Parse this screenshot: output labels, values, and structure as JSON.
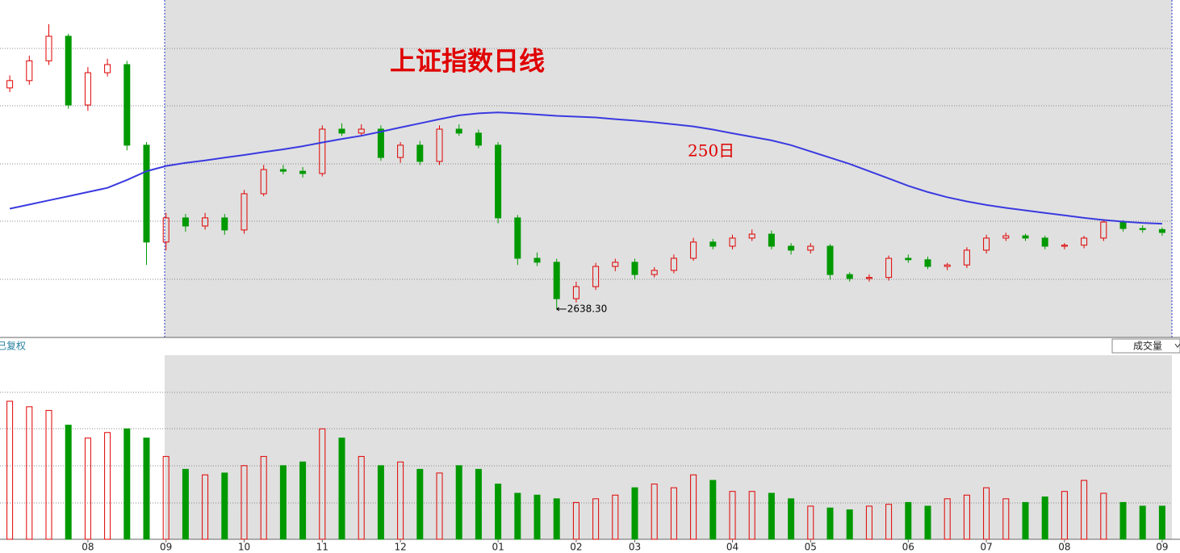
{
  "chart_data": {
    "type": "candlestick",
    "title": "上证指数日线",
    "categories": [
      null,
      null,
      null,
      null,
      "08",
      null,
      null,
      null,
      "09",
      null,
      null,
      null,
      "10",
      null,
      null,
      null,
      "11",
      null,
      null,
      null,
      "12",
      null,
      null,
      null,
      null,
      "01",
      null,
      null,
      null,
      "02",
      null,
      null,
      "03",
      null,
      null,
      null,
      null,
      "04",
      null,
      null,
      null,
      "05",
      null,
      null,
      null,
      null,
      "06",
      null,
      null,
      null,
      "07",
      null,
      null,
      null,
      "08",
      null,
      null,
      null,
      null,
      "09"
    ],
    "open": [
      3700,
      3735,
      3830,
      3948,
      3618,
      3773,
      3812,
      3425,
      2960,
      3076,
      3037,
      3076,
      3018,
      3192,
      3308,
      3300,
      3289,
      3502,
      3483,
      3502,
      3366,
      3425,
      3347,
      3502,
      3483,
      3425,
      3076,
      2882,
      2863,
      2688,
      2746,
      2843,
      2863,
      2804,
      2824,
      2882,
      2960,
      2940,
      2979,
      2998,
      2940,
      2921,
      2940,
      2804,
      2785,
      2790,
      2882,
      2875,
      2843,
      2850,
      2921,
      2979,
      2990,
      2979,
      2940,
      2945,
      2979,
      3056,
      3025,
      3020
    ],
    "high": [
      3760,
      3855,
      4006,
      3960,
      3800,
      3840,
      3830,
      3440,
      3100,
      3095,
      3100,
      3095,
      3210,
      3330,
      3330,
      3320,
      3520,
      3530,
      3525,
      3520,
      3440,
      3445,
      3520,
      3525,
      3500,
      3440,
      3090,
      2910,
      2880,
      2770,
      2860,
      2880,
      2880,
      2840,
      2900,
      2980,
      2975,
      2995,
      3020,
      3015,
      2955,
      2955,
      2950,
      2815,
      2805,
      2895,
      2900,
      2890,
      2860,
      2935,
      2995,
      3005,
      3000,
      2990,
      2955,
      2990,
      3070,
      3065,
      3040,
      3030
    ],
    "low": [
      3680,
      3715,
      3810,
      3600,
      3590,
      3755,
      3400,
      2850,
      2920,
      3010,
      3020,
      2995,
      3000,
      3180,
      3285,
      3270,
      3275,
      3470,
      3470,
      3350,
      3340,
      3330,
      3330,
      3470,
      3410,
      3050,
      2850,
      2845,
      2638.3,
      2670,
      2730,
      2820,
      2780,
      2790,
      2810,
      2870,
      2925,
      2925,
      2965,
      2925,
      2900,
      2905,
      2780,
      2770,
      2770,
      2775,
      2860,
      2830,
      2825,
      2835,
      2905,
      2965,
      2965,
      2925,
      2925,
      2930,
      2965,
      3010,
      3005,
      2990
    ],
    "close": [
      3735,
      3830,
      3948,
      3618,
      3773,
      3812,
      3425,
      2960,
      3076,
      3037,
      3076,
      3018,
      3192,
      3308,
      3300,
      3289,
      3502,
      3483,
      3502,
      3366,
      3425,
      3347,
      3502,
      3483,
      3425,
      3076,
      2882,
      2863,
      2688,
      2746,
      2843,
      2863,
      2804,
      2824,
      2882,
      2960,
      2940,
      2979,
      2998,
      2940,
      2921,
      2940,
      2804,
      2785,
      2790,
      2882,
      2875,
      2843,
      2850,
      2921,
      2979,
      2990,
      2979,
      2940,
      2945,
      2979,
      3056,
      3025,
      3020,
      3006
    ],
    "up_color": "#e00000",
    "down_color": "#009900",
    "ylim": [
      2502,
      4122
    ],
    "ma": {
      "name": "250日",
      "color": "#3a3ae0",
      "values": [
        3120,
        3140,
        3160,
        3180,
        3200,
        3220,
        3258,
        3300,
        3325,
        3340,
        3352,
        3365,
        3378,
        3392,
        3405,
        3420,
        3438,
        3455,
        3470,
        3490,
        3510,
        3530,
        3550,
        3568,
        3578,
        3582,
        3578,
        3572,
        3566,
        3562,
        3558,
        3550,
        3543,
        3535,
        3525,
        3515,
        3500,
        3482,
        3465,
        3448,
        3425,
        3395,
        3365,
        3335,
        3300,
        3265,
        3230,
        3200,
        3175,
        3155,
        3138,
        3124,
        3112,
        3100,
        3088,
        3076,
        3066,
        3058,
        3052,
        3048
      ]
    },
    "annotation": {
      "label": "2638.30",
      "value": 2638.3
    },
    "volume": {
      "ylim": [
        0,
        100
      ],
      "values": [
        75,
        72,
        70,
        62,
        55,
        58,
        60,
        55,
        45,
        38,
        35,
        36,
        40,
        45,
        40,
        42,
        60,
        55,
        45,
        40,
        42,
        38,
        36,
        40,
        38,
        30,
        25,
        24,
        22,
        20,
        22,
        24,
        28,
        30,
        28,
        35,
        32,
        26,
        26,
        25,
        22,
        18,
        17,
        16,
        18,
        19,
        20,
        18,
        22,
        24,
        28,
        22,
        20,
        23,
        26,
        32,
        25,
        20,
        18,
        18
      ]
    },
    "adjust_label": "已复权",
    "volume_label": "成交量"
  }
}
